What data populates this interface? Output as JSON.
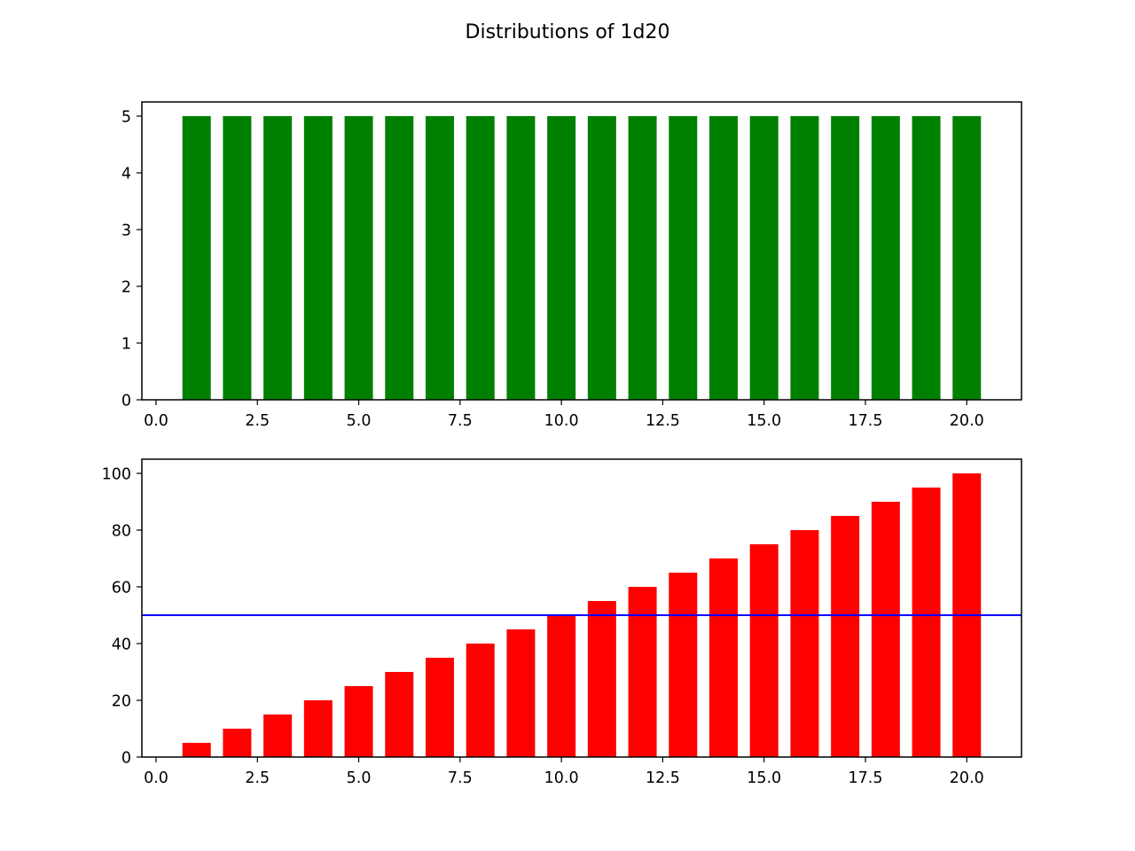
{
  "figure": {
    "suptitle": "Distributions of 1d20"
  },
  "chart_data": [
    {
      "type": "bar",
      "title": "",
      "xlabel": "",
      "ylabel": "",
      "color": "#008000",
      "x": [
        1,
        2,
        3,
        4,
        5,
        6,
        7,
        8,
        9,
        10,
        11,
        12,
        13,
        14,
        15,
        16,
        17,
        18,
        19,
        20
      ],
      "values": [
        5,
        5,
        5,
        5,
        5,
        5,
        5,
        5,
        5,
        5,
        5,
        5,
        5,
        5,
        5,
        5,
        5,
        5,
        5,
        5
      ],
      "bar_width": 0.7,
      "xlim": [
        -0.35,
        21.35
      ],
      "ylim": [
        0,
        5.25
      ],
      "xticks": [
        0.0,
        2.5,
        5.0,
        7.5,
        10.0,
        12.5,
        15.0,
        17.5,
        20.0
      ],
      "xtick_labels": [
        "0.0",
        "2.5",
        "5.0",
        "7.5",
        "10.0",
        "12.5",
        "15.0",
        "17.5",
        "20.0"
      ],
      "yticks": [
        0,
        1,
        2,
        3,
        4,
        5
      ],
      "ytick_labels": [
        "0",
        "1",
        "2",
        "3",
        "4",
        "5"
      ],
      "grid": false
    },
    {
      "type": "bar",
      "title": "",
      "xlabel": "",
      "ylabel": "",
      "color": "#ff0000",
      "x": [
        1,
        2,
        3,
        4,
        5,
        6,
        7,
        8,
        9,
        10,
        11,
        12,
        13,
        14,
        15,
        16,
        17,
        18,
        19,
        20
      ],
      "values": [
        5,
        10,
        15,
        20,
        25,
        30,
        35,
        40,
        45,
        50,
        55,
        60,
        65,
        70,
        75,
        80,
        85,
        90,
        95,
        100
      ],
      "bar_width": 0.7,
      "xlim": [
        -0.35,
        21.35
      ],
      "ylim": [
        0,
        105
      ],
      "xticks": [
        0.0,
        2.5,
        5.0,
        7.5,
        10.0,
        12.5,
        15.0,
        17.5,
        20.0
      ],
      "xtick_labels": [
        "0.0",
        "2.5",
        "5.0",
        "7.5",
        "10.0",
        "12.5",
        "15.0",
        "17.5",
        "20.0"
      ],
      "yticks": [
        0,
        20,
        40,
        60,
        80,
        100
      ],
      "ytick_labels": [
        "0",
        "20",
        "40",
        "60",
        "80",
        "100"
      ],
      "hline": {
        "y": 50,
        "color": "#0000ff"
      },
      "grid": false
    }
  ]
}
